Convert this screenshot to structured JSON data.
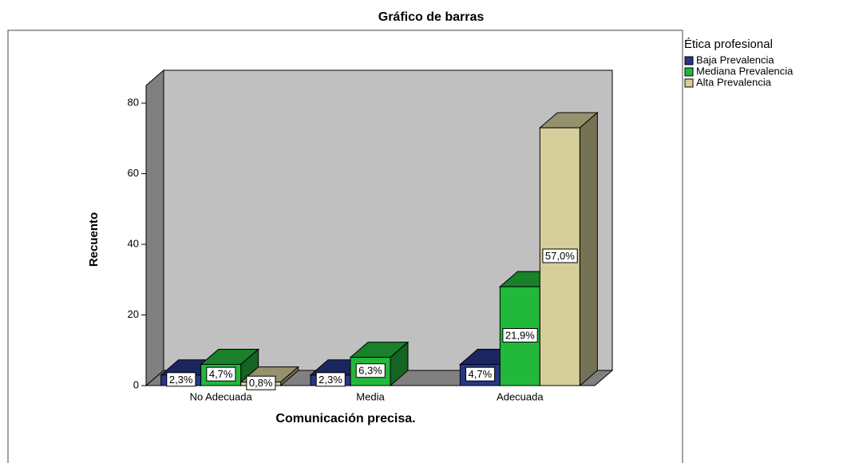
{
  "chart_data": {
    "type": "bar3d",
    "title": "Gráfico de barras",
    "x_label": "Comunicación precisa.",
    "y_label": "Recuento",
    "legend_title": "Ética profesional",
    "categories": [
      "No Adecuada",
      "Media",
      "Adecuada"
    ],
    "series": [
      {
        "name": "Baja Prevalencia",
        "color": "#27368a",
        "values": [
          3,
          3,
          6
        ],
        "value_labels": [
          "2,3%",
          "2,3%",
          "4,7%"
        ]
      },
      {
        "name": "Mediana Prevalencia",
        "color": "#22b83c",
        "values": [
          6,
          8,
          28
        ],
        "value_labels": [
          "4,7%",
          "6,3%",
          "21,9%"
        ]
      },
      {
        "name": "Alta Prevalencia",
        "color": "#d6cf9b",
        "values": [
          1,
          null,
          73
        ],
        "value_labels": [
          "0,8%",
          null,
          "57,0%"
        ]
      }
    ],
    "ylim": [
      0,
      85
    ],
    "yticks": [
      0,
      20,
      40,
      60,
      80
    ],
    "legend": "right"
  }
}
